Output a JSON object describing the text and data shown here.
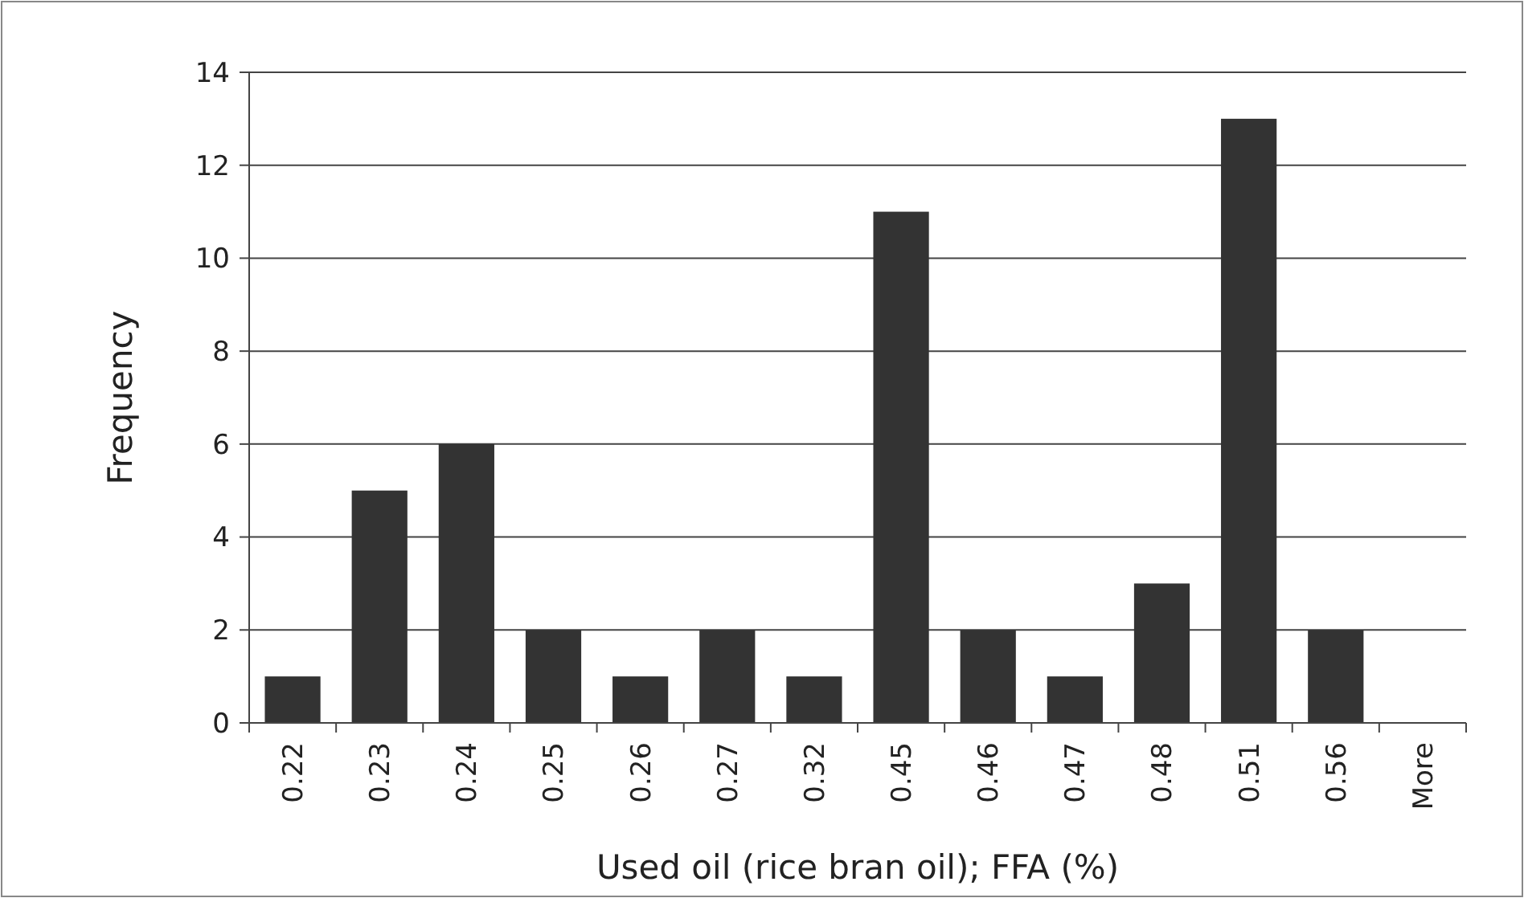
{
  "chart_data": {
    "type": "bar",
    "xlabel": "Used oil (rice bran oil); FFA (%)",
    "ylabel": "Frequency",
    "categories": [
      "0.22",
      "0.23",
      "0.24",
      "0.25",
      "0.26",
      "0.27",
      "0.32",
      "0.45",
      "0.46",
      "0.47",
      "0.48",
      "0.51",
      "0.56",
      "More"
    ],
    "values": [
      1,
      5,
      6,
      2,
      1,
      2,
      1,
      11,
      2,
      1,
      3,
      13,
      2,
      0
    ],
    "color": "#333333",
    "ylim": [
      0,
      14
    ],
    "yticks": [
      0,
      2,
      4,
      6,
      8,
      10,
      12,
      14
    ],
    "grid": "y"
  }
}
